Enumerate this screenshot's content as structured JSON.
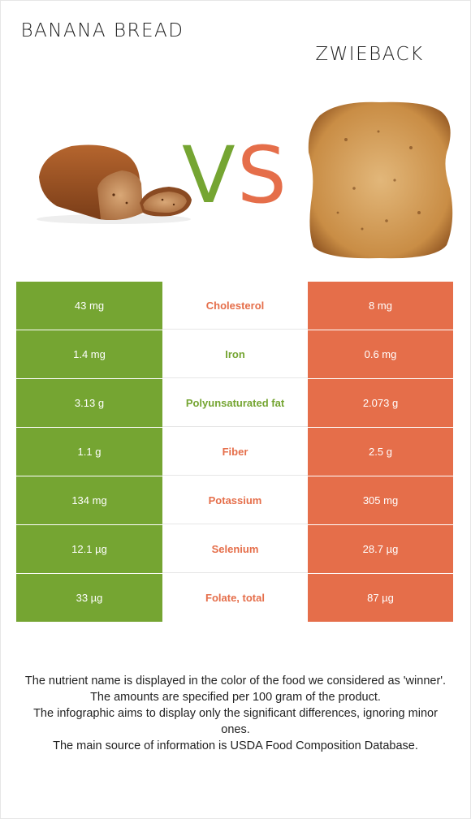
{
  "header": {
    "left_food": "Banana bread",
    "vs_v": "V",
    "vs_s": "S",
    "right_food": "Zwieback"
  },
  "colors": {
    "left_winner": "#75a532",
    "right_winner": "#e56e4a"
  },
  "images": {
    "left": "banana-bread-loaf-photo",
    "right": "zwieback-rusk-slice-photo"
  },
  "rows": [
    {
      "left": "43 mg",
      "nutrient": "Cholesterol",
      "right": "8 mg",
      "winner": "right"
    },
    {
      "left": "1.4 mg",
      "nutrient": "Iron",
      "right": "0.6 mg",
      "winner": "left"
    },
    {
      "left": "3.13 g",
      "nutrient": "Polyunsaturated fat",
      "right": "2.073 g",
      "winner": "left"
    },
    {
      "left": "1.1 g",
      "nutrient": "Fiber",
      "right": "2.5 g",
      "winner": "right"
    },
    {
      "left": "134 mg",
      "nutrient": "Potassium",
      "right": "305 mg",
      "winner": "right"
    },
    {
      "left": "12.1 µg",
      "nutrient": "Selenium",
      "right": "28.7 µg",
      "winner": "right"
    },
    {
      "left": "33 µg",
      "nutrient": "Folate, total",
      "right": "87 µg",
      "winner": "right"
    }
  ],
  "footnotes": [
    "The nutrient name is displayed in the color of the food we considered as 'winner'.",
    "The amounts are specified per 100 gram of the product.",
    "The infographic aims to display only the significant differences, ignoring minor ones.",
    "The main source of information is USDA Food Composition Database."
  ]
}
